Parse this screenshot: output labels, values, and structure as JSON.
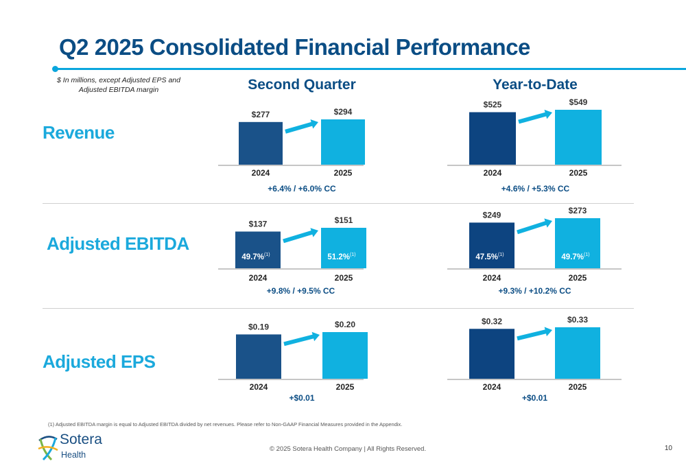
{
  "header": {
    "title": "Q2 2025 Consolidated Financial Performance",
    "units_note": "$ In millions, except Adjusted EPS and Adjusted EBITDA margin"
  },
  "columns": {
    "second_quarter": "Second Quarter",
    "year_to_date": "Year-to-Date"
  },
  "rows": {
    "revenue": "Revenue",
    "ebitda": "Adjusted EBITDA",
    "eps": "Adjusted EPS"
  },
  "colors": {
    "bar_2024_quarter": "#1a5289",
    "bar_2024_ytd": "#0d4480",
    "bar_2025": "#10b1e0",
    "arrow": "#10b1e0",
    "growth_text": "#0b4d84",
    "baseline": "#c6c6c6"
  },
  "chart_data": [
    {
      "type": "bar",
      "section": "Revenue",
      "column": "Second Quarter",
      "categories": [
        "2024",
        "2025"
      ],
      "values": [
        277,
        294
      ],
      "value_labels": [
        "$277",
        "$294"
      ],
      "growth": "+6.4% / +6.0% CC"
    },
    {
      "type": "bar",
      "section": "Revenue",
      "column": "Year-to-Date",
      "categories": [
        "2024",
        "2025"
      ],
      "values": [
        525,
        549
      ],
      "value_labels": [
        "$525",
        "$549"
      ],
      "growth": "+4.6% / +5.3% CC"
    },
    {
      "type": "bar",
      "section": "Adjusted EBITDA",
      "column": "Second Quarter",
      "categories": [
        "2024",
        "2025"
      ],
      "values": [
        137,
        151
      ],
      "value_labels": [
        "$137",
        "$151"
      ],
      "margins": [
        "49.7%",
        "51.2%"
      ],
      "margin_note": "(1)",
      "growth": "+9.8% / +9.5% CC"
    },
    {
      "type": "bar",
      "section": "Adjusted EBITDA",
      "column": "Year-to-Date",
      "categories": [
        "2024",
        "2025"
      ],
      "values": [
        249,
        273
      ],
      "value_labels": [
        "$249",
        "$273"
      ],
      "margins": [
        "47.5%",
        "49.7%"
      ],
      "margin_note": "(1)",
      "growth": "+9.3% / +10.2% CC"
    },
    {
      "type": "bar",
      "section": "Adjusted EPS",
      "column": "Second Quarter",
      "categories": [
        "2024",
        "2025"
      ],
      "values": [
        0.19,
        0.2
      ],
      "value_labels": [
        "$0.19",
        "$0.20"
      ],
      "growth": "+$0.01"
    },
    {
      "type": "bar",
      "section": "Adjusted EPS",
      "column": "Year-to-Date",
      "categories": [
        "2024",
        "2025"
      ],
      "values": [
        0.32,
        0.33
      ],
      "value_labels": [
        "$0.32",
        "$0.33"
      ],
      "growth": "+$0.01"
    }
  ],
  "footer": {
    "footnote": "(1)    Adjusted EBITDA margin is equal to Adjusted EBITDA divided by net revenues. Please refer to Non-GAAP Financial Measures provided in the Appendix.",
    "copyright": "© 2025 Sotera Health Company  |   All Rights Reserved.",
    "page_number": "10",
    "logo_name": "Sotera",
    "logo_sub": "Health",
    "logo_icon": "sotera-logo-icon"
  }
}
